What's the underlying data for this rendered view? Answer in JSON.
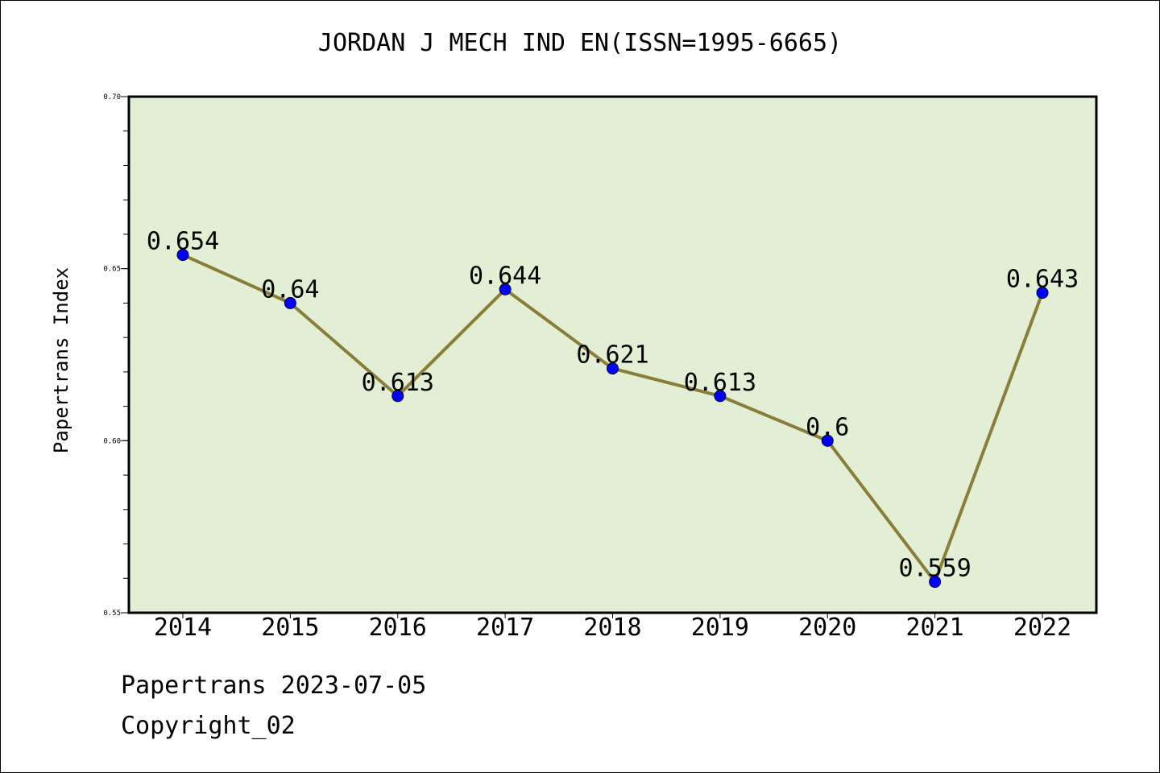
{
  "chart_data": {
    "type": "line",
    "title": "JORDAN J MECH IND EN(ISSN=1995-6665)",
    "ylabel": "Papertrans Index",
    "xlabel": "",
    "categories": [
      "2014",
      "2015",
      "2016",
      "2017",
      "2018",
      "2019",
      "2020",
      "2021",
      "2022"
    ],
    "series": [
      {
        "values": [
          0.654,
          0.64,
          0.613,
          0.644,
          0.621,
          0.613,
          0.6,
          0.559,
          0.643
        ],
        "data_labels": [
          "0.654",
          "0.64",
          "0.613",
          "0.644",
          "0.621",
          "0.613",
          "0.6",
          "0.559",
          "0.643"
        ]
      }
    ],
    "ylim": [
      0.55,
      0.7
    ],
    "y_tick_labels": [
      "0.55",
      "0.60",
      "0.65",
      "0.70"
    ],
    "y_minor_step": 0.01,
    "grid": false,
    "plot_background": "#e2efd5",
    "line_color": "#8a7d3a",
    "marker_color": "#0000ff"
  },
  "footer": {
    "date_line": "Papertrans 2023-07-05",
    "copyright": "Copyright_02"
  }
}
